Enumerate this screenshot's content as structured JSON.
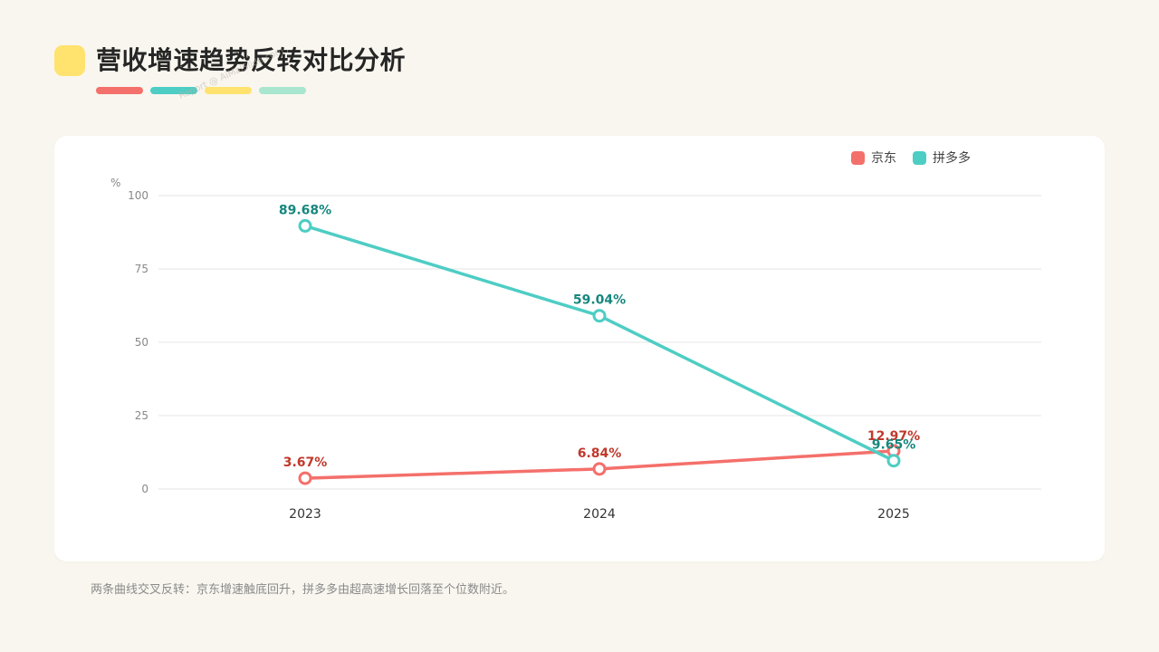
{
  "page": {
    "title": "营收增速趋势反转对比分析",
    "title_icon_color": "#ffe36e",
    "title_bar_colors": [
      "#f4706b",
      "#4ecdc4",
      "#ffe36e",
      "#a8e6cf"
    ],
    "watermark": "Report @ AiMalSlide.com",
    "caption": "两条曲线交叉反转：京东增速触底回升，拼多多由超高速增长回落至个位数附近。"
  },
  "chart_data": {
    "type": "line",
    "title": "",
    "xlabel": "",
    "ylabel": "%",
    "categories": [
      "2023",
      "2024",
      "2025"
    ],
    "ylim": [
      0,
      100
    ],
    "yticks": [
      0,
      25,
      50,
      75,
      100
    ],
    "grid": true,
    "legend_position": "top-right",
    "series": [
      {
        "name": "京东",
        "values": [
          3.67,
          6.84,
          12.97
        ],
        "labels": [
          "3.67%",
          "6.84%",
          "12.97%"
        ],
        "color": "#f4706b",
        "label_color": "#c0392b"
      },
      {
        "name": "拼多多",
        "values": [
          89.68,
          59.04,
          9.65
        ],
        "labels": [
          "89.68%",
          "59.04%",
          "9.65%"
        ],
        "color": "#4ecdc4",
        "label_color": "#16877e"
      }
    ]
  }
}
